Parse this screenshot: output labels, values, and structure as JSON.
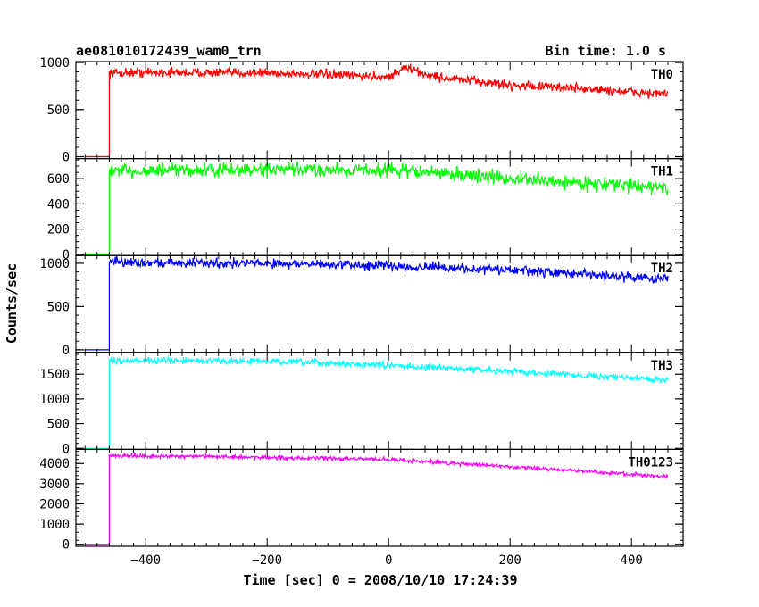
{
  "header": {
    "title": "ae081010172439_wam0_trn",
    "bin_time": "Bin time: 1.0 s"
  },
  "axes": {
    "xlabel": "Time [sec] 0 = 2008/10/10 17:24:39",
    "ylabel": "Counts/sec"
  },
  "chart_data": {
    "type": "line",
    "x_range": [
      -515,
      485
    ],
    "x_ticks": [
      -400,
      -200,
      0,
      200,
      400
    ],
    "x_tick_labels": [
      "−400",
      "−200",
      "0",
      "200",
      "400"
    ],
    "panels": [
      {
        "name": "TH0",
        "color": "#ff0000",
        "ylim": [
          -20,
          1010
        ],
        "y_ticks": [
          0,
          500,
          1000
        ],
        "y_tick_labels": [
          "0",
          "500",
          "1000"
        ],
        "minor_step": 100,
        "pre_x": [
          -500,
          -460
        ],
        "step_x": -460,
        "pre_value": 0,
        "profile_x": [
          -460,
          -400,
          -200,
          0,
          30,
          60,
          100,
          200,
          300,
          460
        ],
        "profile_y": [
          890,
          895,
          890,
          850,
          950,
          870,
          830,
          760,
          730,
          660
        ],
        "noise": 55
      },
      {
        "name": "TH1",
        "color": "#00ff00",
        "ylim": [
          -10,
          760
        ],
        "y_ticks": [
          0,
          200,
          400,
          600
        ],
        "y_tick_labels": [
          "0",
          "200",
          "400",
          "600"
        ],
        "minor_step": 50,
        "pre_x": [
          -500,
          -460
        ],
        "step_x": -460,
        "pre_value": 0,
        "profile_x": [
          -460,
          -200,
          0,
          100,
          200,
          300,
          460
        ],
        "profile_y": [
          660,
          670,
          670,
          640,
          600,
          570,
          530
        ],
        "noise": 60
      },
      {
        "name": "TH2",
        "color": "#0000ff",
        "ylim": [
          -30,
          1090
        ],
        "y_ticks": [
          0,
          500,
          1000
        ],
        "y_tick_labels": [
          "0",
          "500",
          "1000"
        ],
        "minor_step": 100,
        "pre_x": [
          -500,
          -460
        ],
        "step_x": -460,
        "pre_value": 0,
        "profile_x": [
          -460,
          -200,
          0,
          200,
          460
        ],
        "profile_y": [
          1010,
          1000,
          970,
          920,
          820
        ],
        "noise": 60
      },
      {
        "name": "TH3",
        "color": "#00ffff",
        "ylim": [
          -20,
          1940
        ],
        "y_ticks": [
          0,
          500,
          1000,
          1500
        ],
        "y_tick_labels": [
          "0",
          "500",
          "1000",
          "1500"
        ],
        "minor_step": 100,
        "pre_x": [
          -500,
          -460
        ],
        "step_x": -460,
        "pre_value": 0,
        "profile_x": [
          -460,
          -200,
          0,
          200,
          460
        ],
        "profile_y": [
          1780,
          1760,
          1680,
          1560,
          1380
        ],
        "noise": 70
      },
      {
        "name": "TH0123",
        "color": "#ff00ff",
        "ylim": [
          -100,
          4700
        ],
        "y_ticks": [
          0,
          1000,
          2000,
          3000,
          4000
        ],
        "y_tick_labels": [
          "0",
          "1000",
          "2000",
          "3000",
          "4000"
        ],
        "minor_step": 200,
        "pre_x": [
          -500,
          -460
        ],
        "step_x": -460,
        "pre_value": 0,
        "profile_x": [
          -460,
          -200,
          0,
          200,
          460
        ],
        "profile_y": [
          4400,
          4300,
          4200,
          3850,
          3350
        ],
        "noise": 110
      }
    ]
  }
}
